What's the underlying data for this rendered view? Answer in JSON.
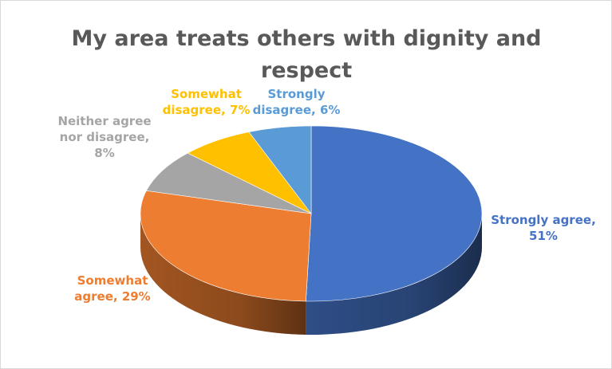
{
  "chart_data": {
    "type": "pie",
    "title": "My area treats others with dignity and respect",
    "style": "3d",
    "categories": [
      "Strongly agree",
      "Somewhat agree",
      "Neither agree nor disagree",
      "Somewhat disagree",
      "Strongly disagree"
    ],
    "values": [
      51,
      29,
      8,
      7,
      6
    ],
    "value_labels": [
      "51%",
      "29%",
      "8%",
      "7%",
      "6%"
    ],
    "colors": [
      "#4472C4",
      "#ED7D31",
      "#A5A5A5",
      "#FFC000",
      "#5B9BD5"
    ],
    "legend": "none"
  }
}
